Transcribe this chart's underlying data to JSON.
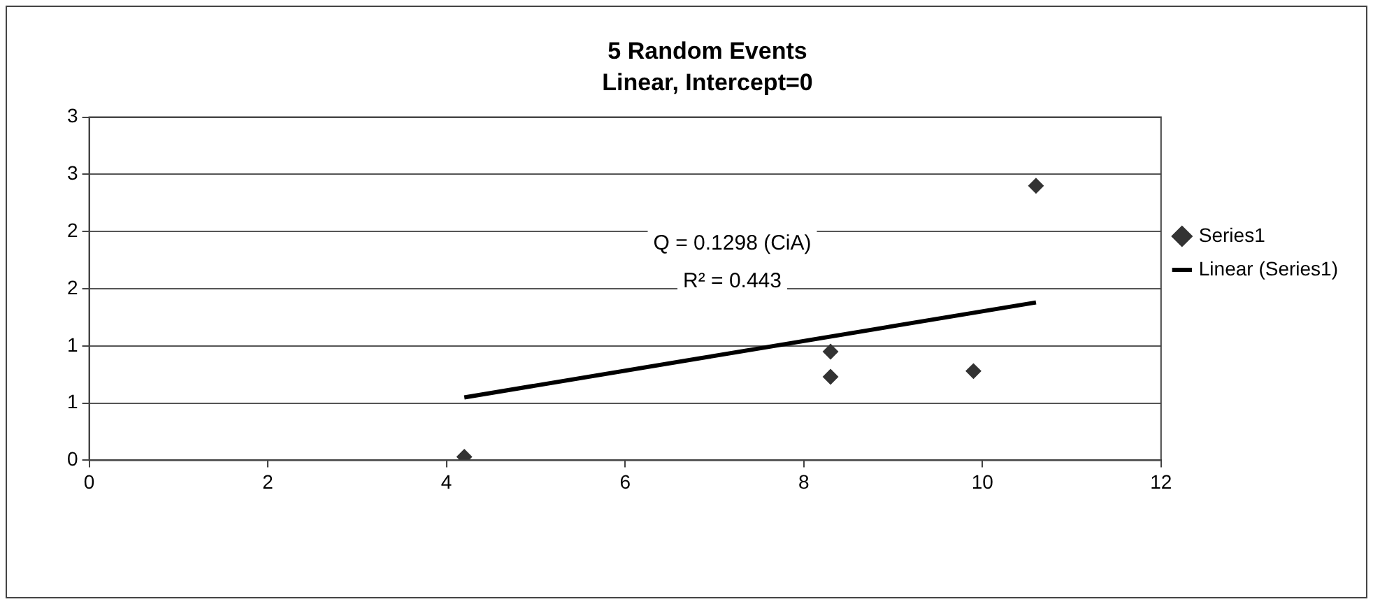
{
  "chart_data": {
    "type": "scatter",
    "title": "5 Random Events",
    "subtitle": "Linear, Intercept=0",
    "xlim": [
      0,
      12
    ],
    "xticks": [
      0,
      2,
      4,
      6,
      8,
      10,
      12
    ],
    "ylim": [
      0,
      3
    ],
    "yticks": [
      0,
      {
        "value": 0.5,
        "label": "1"
      },
      1,
      {
        "value": 1.5,
        "label": "2"
      },
      2,
      {
        "value": 2.5,
        "label": "3"
      },
      3
    ],
    "grid": "y",
    "legend": "right",
    "annotations": [
      "Q = 0.1298 (CiA)",
      "R² = 0.443"
    ],
    "series": [
      {
        "name": "Series1",
        "type": "scatter",
        "marker": "diamond",
        "color": "#333333",
        "x": [
          4.2,
          8.3,
          8.3,
          9.9,
          10.6
        ],
        "values": [
          0.03,
          0.95,
          0.73,
          0.78,
          2.4
        ]
      },
      {
        "name": "Linear (Series1)",
        "type": "line",
        "color": "#000000",
        "line_style": "solid",
        "marker": "none",
        "x": [
          4.2,
          10.6
        ],
        "values": [
          0.55,
          1.38
        ]
      }
    ]
  }
}
